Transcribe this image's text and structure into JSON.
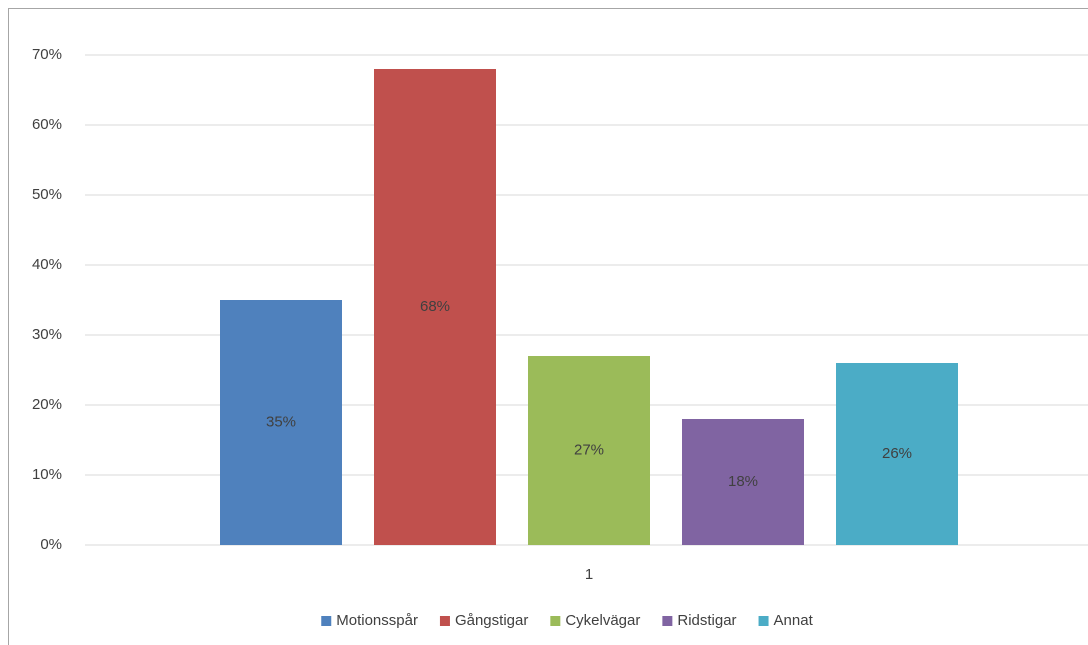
{
  "chart_data": {
    "type": "bar",
    "categories": [
      "1"
    ],
    "series": [
      {
        "name": "Motionsspår",
        "color": "#4f81bd",
        "values": [
          35
        ],
        "value_labels": [
          "35%"
        ]
      },
      {
        "name": "Gångstigar",
        "color": "#c0504d",
        "values": [
          68
        ],
        "value_labels": [
          "68%"
        ]
      },
      {
        "name": "Cykelvägar",
        "color": "#9bbb59",
        "values": [
          27
        ],
        "value_labels": [
          "27%"
        ]
      },
      {
        "name": "Ridstigar",
        "color": "#8064a2",
        "values": [
          18
        ],
        "value_labels": [
          "18%"
        ]
      },
      {
        "name": "Annat",
        "color": "#4bacc6",
        "values": [
          26
        ],
        "value_labels": [
          "26%"
        ]
      }
    ],
    "ylim": [
      0,
      70
    ],
    "yticks": [
      {
        "value": 0,
        "label": "0%"
      },
      {
        "value": 10,
        "label": "10%"
      },
      {
        "value": 20,
        "label": "20%"
      },
      {
        "value": 30,
        "label": "30%"
      },
      {
        "value": 40,
        "label": "40%"
      },
      {
        "value": 50,
        "label": "50%"
      },
      {
        "value": 60,
        "label": "60%"
      },
      {
        "value": 70,
        "label": "70%"
      }
    ],
    "grid": true,
    "legend": "bottom"
  }
}
